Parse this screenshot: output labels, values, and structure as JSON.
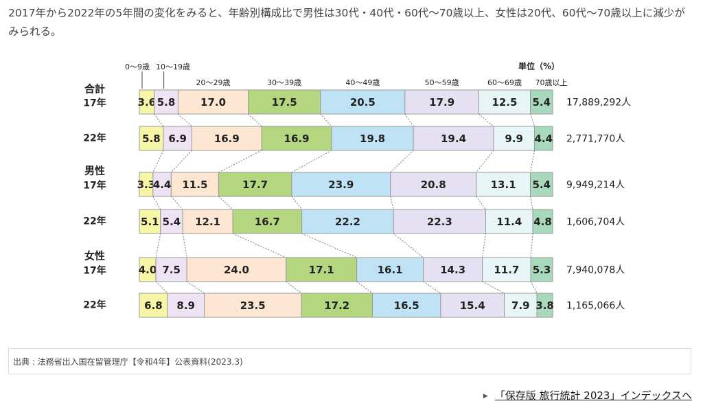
{
  "intro": "2017年から2022年の5年間の変化をみると、年齢別構成比で男性は30代・40代・60代〜70歳以上、女性は20代、60代〜70歳以上に減少がみられる。",
  "chart_data": {
    "type": "bar",
    "orientation": "horizontal-stacked-100",
    "unit_label": "単位（%）",
    "categories": [
      "0〜9歳",
      "10〜19歳",
      "20〜29歳",
      "30〜39歳",
      "40〜49歳",
      "50〜59歳",
      "60〜69歳",
      "70歳以上"
    ],
    "colors": [
      "#f7f5a6",
      "#eee3f3",
      "#fde6d2",
      "#b3d67f",
      "#bfe3f5",
      "#e6e1f2",
      "#e8f5f6",
      "#a8d9bd"
    ],
    "groups": [
      {
        "label": "合計",
        "rows": [
          {
            "year": "17年",
            "values": [
              3.6,
              5.8,
              17.0,
              17.5,
              20.5,
              17.9,
              12.5,
              5.4
            ],
            "labels": [
              "3.6",
              "5.8",
              "17.0",
              "17.5",
              "20.5",
              "17.9",
              "12.5",
              "5.4"
            ],
            "total": "17,889,292人"
          },
          {
            "year": "22年",
            "values": [
              5.8,
              6.9,
              16.9,
              16.9,
              19.8,
              19.4,
              9.9,
              4.4
            ],
            "labels": [
              "5.8",
              "6.9",
              "16.9",
              "16.9",
              "19.8",
              "19.4",
              "9.9",
              "4.4"
            ],
            "total": "2,771,770人"
          }
        ]
      },
      {
        "label": "男性",
        "rows": [
          {
            "year": "17年",
            "values": [
              3.3,
              4.4,
              11.5,
              17.7,
              23.9,
              20.8,
              13.1,
              5.4
            ],
            "labels": [
              "3.3",
              "4.4",
              "11.5",
              "17.7",
              "23.9",
              "20.8",
              "13.1",
              "5.4"
            ],
            "total": "9,949,214人"
          },
          {
            "year": "22年",
            "values": [
              5.1,
              5.4,
              12.1,
              16.7,
              22.2,
              22.3,
              11.4,
              4.8
            ],
            "labels": [
              "5.1",
              "5.4",
              "12.1",
              "16.7",
              "22.2",
              "22.3",
              "11.4",
              "4.8"
            ],
            "total": "1,606,704人"
          }
        ]
      },
      {
        "label": "女性",
        "rows": [
          {
            "year": "17年",
            "values": [
              4.0,
              7.5,
              24.0,
              17.1,
              16.1,
              14.3,
              11.7,
              5.3
            ],
            "labels": [
              "4.0",
              "7.5",
              "24.0",
              "17.1",
              "16.1",
              "14.3",
              "11.7",
              "5.3"
            ],
            "total": "7,940,078人"
          },
          {
            "year": "22年",
            "values": [
              6.8,
              8.9,
              23.5,
              17.2,
              16.5,
              15.4,
              7.9,
              3.8
            ],
            "labels": [
              "6.8",
              "8.9",
              "23.5",
              "17.2",
              "16.5",
              "15.4",
              "7.9",
              "3.8"
            ],
            "total": "1,165,066人"
          }
        ]
      }
    ]
  },
  "source": "出典 : 法務省出入国在留管理庁【令和4年】公表資料(2023.3)",
  "footer": {
    "arrow": "▶",
    "link_text": "「保存版 旅行統計 2023」インデックスへ"
  }
}
